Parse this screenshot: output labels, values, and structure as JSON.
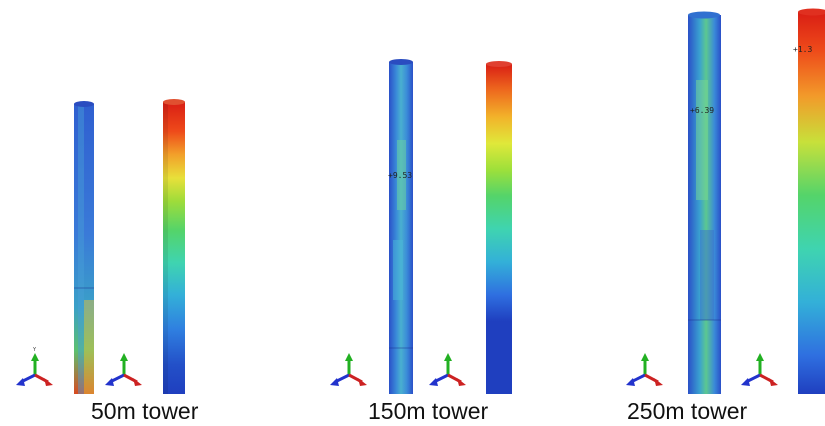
{
  "figure": {
    "panels": [
      {
        "caption": "50m tower",
        "probe_label": ""
      },
      {
        "caption": "150m tower",
        "probe_label": "+9.53"
      },
      {
        "caption": "250m tower",
        "probe_label": "+6.39",
        "probe_label_2": "+1.3"
      }
    ],
    "triad_axes": {
      "y": "Y",
      "z": "Z",
      "x": "X"
    },
    "colors": {
      "background": "#ffffff",
      "contour": [
        "#1f3fbf",
        "#2f6fe0",
        "#33b0d8",
        "#3fd4b0",
        "#54d46a",
        "#9ee03a",
        "#e0e83a",
        "#f2b22a",
        "#ee6a1e",
        "#d91e14"
      ]
    }
  }
}
